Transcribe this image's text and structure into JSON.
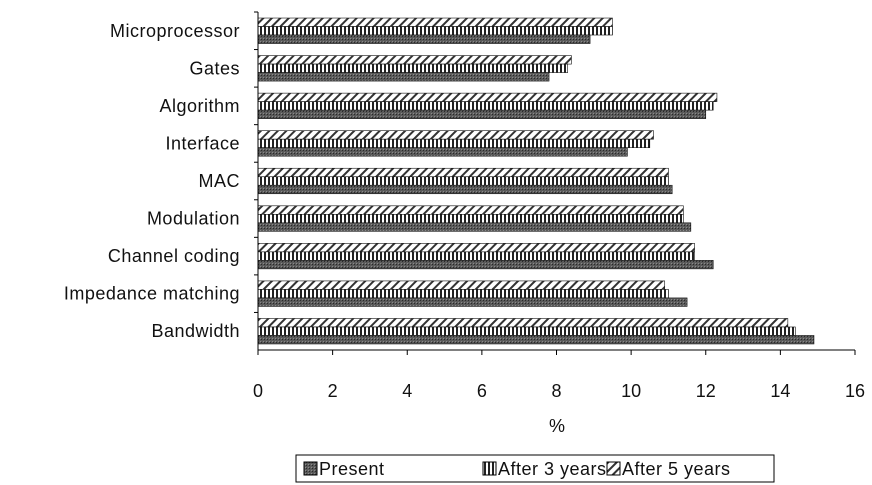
{
  "chart_data": {
    "type": "bar",
    "orientation": "horizontal",
    "categories": [
      "Microprocessor",
      "Gates",
      "Algorithm",
      "Interface",
      "MAC",
      "Modulation",
      "Channel coding",
      "Impedance matching",
      "Bandwidth"
    ],
    "series": [
      {
        "name": "Present",
        "values": [
          8.9,
          7.8,
          12.0,
          9.9,
          11.1,
          11.6,
          12.2,
          11.5,
          14.9
        ],
        "pattern": "dark"
      },
      {
        "name": "After 3 years",
        "values": [
          9.5,
          8.3,
          12.2,
          10.5,
          11.0,
          11.4,
          11.7,
          11.0,
          14.4
        ],
        "pattern": "vertical-stripes"
      },
      {
        "name": "After 5 years",
        "values": [
          9.5,
          8.4,
          12.3,
          10.6,
          11.0,
          11.4,
          11.7,
          10.9,
          14.2
        ],
        "pattern": "diagonal-hatch"
      }
    ],
    "xlabel": "%",
    "ylabel": "",
    "xlim": [
      0,
      16
    ],
    "xticks": [
      "0",
      "2",
      "4",
      "6",
      "8",
      "10",
      "12",
      "14",
      "16"
    ],
    "grid": false,
    "legend_position": "bottom",
    "colors": {
      "present": "#4a4a4a",
      "stripes": "#222222",
      "hatch": "#333333",
      "axis": "#000000"
    }
  }
}
